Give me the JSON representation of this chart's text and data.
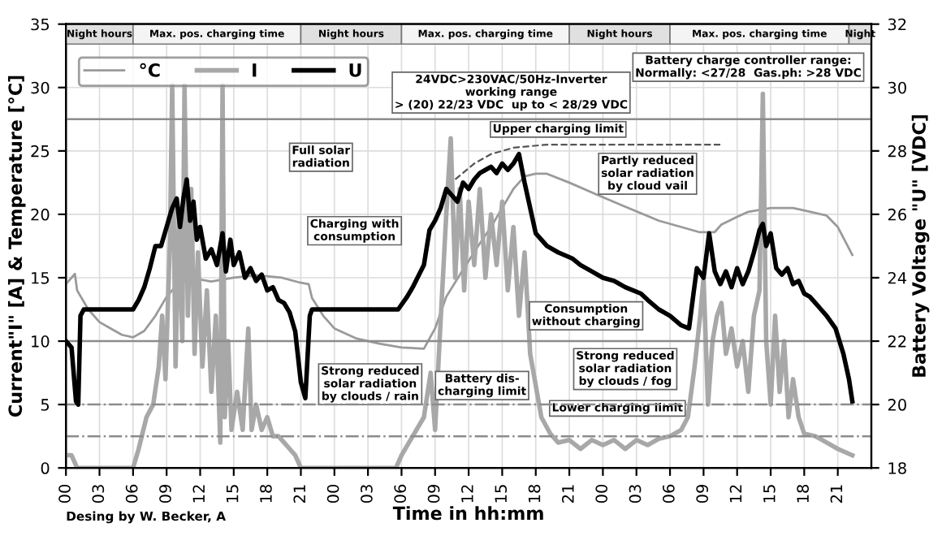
{
  "chart_data": {
    "type": "line",
    "xlabel": "Time in hh:mm",
    "ylabel": "Current\"I\" [A] & Temperature [°C]",
    "y2label": "Battery Voltage \"U\" [VDC]",
    "xlim": [
      0,
      72
    ],
    "xticks": [
      {
        "value": 0,
        "label": "00"
      },
      {
        "value": 3,
        "label": "03"
      },
      {
        "value": 6,
        "label": "06"
      },
      {
        "value": 9,
        "label": "09"
      },
      {
        "value": 12,
        "label": "12"
      },
      {
        "value": 15,
        "label": "15"
      },
      {
        "value": 18,
        "label": "18"
      },
      {
        "value": 21,
        "label": "21"
      },
      {
        "value": 24,
        "label": "00"
      },
      {
        "value": 27,
        "label": "03"
      },
      {
        "value": 30,
        "label": "06"
      },
      {
        "value": 33,
        "label": "09"
      },
      {
        "value": 36,
        "label": "12"
      },
      {
        "value": 39,
        "label": "15"
      },
      {
        "value": 42,
        "label": "18"
      },
      {
        "value": 45,
        "label": "21"
      },
      {
        "value": 48,
        "label": "00"
      },
      {
        "value": 51,
        "label": "03"
      },
      {
        "value": 54,
        "label": "06"
      },
      {
        "value": 57,
        "label": "09"
      },
      {
        "value": 60,
        "label": "12"
      },
      {
        "value": 63,
        "label": "15"
      },
      {
        "value": 66,
        "label": "18"
      },
      {
        "value": 69,
        "label": "21"
      }
    ],
    "ylim": [
      0,
      35
    ],
    "yticks": [
      0,
      5,
      10,
      15,
      20,
      25,
      30,
      35
    ],
    "y2lim": [
      18,
      32
    ],
    "y2ticks": [
      18,
      20,
      22,
      24,
      26,
      28,
      30,
      32
    ],
    "grid": true,
    "legend": "top left",
    "series": [
      {
        "name": "°C",
        "color": "#9a9a9a",
        "x": [
          0,
          0.8,
          1,
          2,
          3,
          4,
          5,
          6,
          7,
          8,
          9,
          10,
          11,
          13,
          15,
          17,
          19.3,
          21,
          21.7,
          22,
          23,
          24,
          26,
          28,
          30,
          32,
          33,
          34,
          35.4,
          37,
          38,
          39,
          40,
          41,
          42,
          43,
          45,
          47.6,
          50,
          53,
          55,
          56.6,
          58,
          58.6,
          60,
          61,
          63,
          65,
          66,
          68,
          69,
          70.3
        ],
        "values": [
          14.5,
          15.3,
          14,
          12.5,
          11.5,
          11,
          10.5,
          10.3,
          10.8,
          12,
          13.5,
          14.5,
          15,
          14.7,
          15,
          15.2,
          15,
          14.6,
          14.5,
          13.4,
          12,
          11,
          10.2,
          9.8,
          9.5,
          9.4,
          11,
          13.5,
          15.5,
          17.7,
          19,
          20.5,
          22,
          23,
          23.2,
          23.2,
          22.5,
          21.5,
          20.6,
          19.5,
          19,
          18.6,
          18.6,
          19.2,
          19.8,
          20.2,
          20.5,
          20.5,
          20.3,
          19.9,
          19,
          16.8
        ]
      },
      {
        "name": "I",
        "color": "#a8a8a8",
        "x": [
          0,
          0.5,
          1,
          6,
          6.5,
          7.2,
          7.8,
          8.3,
          8.6,
          8.9,
          9.3,
          9.5,
          9.8,
          10.1,
          10.4,
          10.6,
          10.9,
          11.2,
          11.5,
          11.8,
          12.2,
          12.6,
          13,
          13.4,
          13.8,
          14,
          14.2,
          14.5,
          14.8,
          15.3,
          15.8,
          16.3,
          16.6,
          17,
          17.5,
          18,
          18.5,
          19,
          19.5,
          20,
          20.5,
          21,
          29.5,
          30,
          31,
          32,
          32.6,
          33,
          33.4,
          34,
          34.4,
          34.8,
          35.2,
          35.6,
          36,
          36.5,
          37,
          37.5,
          38,
          38.5,
          39,
          39.5,
          40,
          40.5,
          41,
          41.5,
          42,
          42.5,
          43.3,
          44,
          45,
          46,
          47,
          48,
          49,
          50,
          51,
          52,
          53,
          54,
          55,
          55.6,
          56.2,
          56.7,
          57,
          57.4,
          57.8,
          58.2,
          58.6,
          59,
          59.5,
          60,
          60.5,
          61,
          61.5,
          62,
          62.3,
          62.6,
          63,
          63.4,
          63.8,
          64.2,
          64.6,
          65,
          65.5,
          66,
          67,
          68,
          69,
          70.3
        ],
        "values": [
          1,
          1,
          0,
          0,
          1.5,
          4,
          5,
          8,
          12,
          7,
          18,
          30.2,
          8,
          20,
          10,
          30.2,
          12,
          22,
          9,
          17,
          8,
          14,
          6,
          12,
          2,
          30.2,
          4,
          10,
          3,
          6,
          3,
          11,
          3,
          5,
          3,
          4,
          2.5,
          2.5,
          2,
          1.5,
          1,
          0,
          0,
          1,
          2.5,
          4,
          7.5,
          3,
          10,
          20,
          26,
          15,
          22,
          14,
          21,
          16,
          22,
          15,
          20,
          16,
          21,
          14,
          19,
          12,
          17,
          9,
          6.5,
          4,
          2.7,
          2,
          2.2,
          1.5,
          2.2,
          1.8,
          2.2,
          1.5,
          2.2,
          1.8,
          2.3,
          2.5,
          3,
          4,
          8,
          12,
          15,
          5,
          10,
          12,
          13,
          9,
          11,
          8,
          10,
          6,
          12,
          14,
          29.5,
          10,
          5,
          12,
          6,
          10,
          4,
          7,
          4,
          2.7,
          2.5,
          2,
          1.5,
          1
        ]
      },
      {
        "name": "U",
        "color": "#000000",
        "axis": "y2",
        "x": [
          0,
          0.5,
          0.9,
          1.1,
          1.3,
          1.6,
          6,
          6.5,
          7,
          7.5,
          8,
          8.5,
          9,
          9.5,
          9.9,
          10.2,
          10.5,
          10.8,
          11.1,
          11.4,
          11.7,
          12,
          12.5,
          13,
          13.5,
          14,
          14.3,
          14.7,
          15,
          15.5,
          16,
          16.5,
          17,
          17.5,
          18,
          18.5,
          19,
          19.5,
          20,
          20.5,
          21,
          21.4,
          21.8,
          22,
          29.7,
          30.5,
          31,
          32,
          32.5,
          33,
          33.5,
          34,
          34.5,
          35,
          35.5,
          36,
          36.5,
          37,
          37.5,
          38,
          38.5,
          39,
          39.5,
          40,
          40.5,
          41,
          41.5,
          42,
          42.5,
          43,
          44,
          45.3,
          46,
          47,
          48,
          49,
          50,
          51.4,
          52,
          53,
          54,
          55,
          55.7,
          56.1,
          56.4,
          57,
          57.5,
          58,
          58.5,
          59,
          59.5,
          60,
          60.5,
          61,
          61.5,
          62,
          62.3,
          62.6,
          63,
          63.5,
          64,
          64.5,
          65,
          65.5,
          66,
          66.5,
          67,
          67.5,
          68,
          68.8,
          69.5,
          70,
          70.3
        ],
        "values": [
          22,
          21.8,
          20.1,
          20,
          22.8,
          23,
          23,
          23.3,
          23.7,
          24.3,
          25,
          25,
          25.6,
          26.2,
          26.5,
          25.6,
          26.5,
          27.1,
          25.8,
          26.4,
          25.2,
          25.6,
          24.6,
          24.9,
          24.4,
          25.4,
          24.2,
          25.2,
          24.4,
          24.8,
          24,
          24.3,
          23.9,
          24.1,
          23.6,
          23.7,
          23.3,
          23.2,
          22.9,
          22.3,
          20.7,
          20.2,
          22.8,
          23,
          23,
          23.4,
          23.7,
          24.4,
          25.5,
          25.8,
          26.2,
          26.8,
          26.6,
          26.4,
          27,
          26.8,
          27.1,
          27.3,
          27.4,
          27.5,
          27.3,
          27.6,
          27.4,
          27.6,
          27.9,
          27,
          26.2,
          25.4,
          25.2,
          25,
          24.8,
          24.6,
          24.4,
          24.2,
          24,
          23.9,
          23.7,
          23.5,
          23.3,
          23,
          22.8,
          22.5,
          22.4,
          23.5,
          24.3,
          24,
          25.4,
          24.2,
          23.8,
          24.2,
          23.7,
          24.3,
          23.8,
          24.2,
          24.8,
          25.5,
          25.7,
          25,
          25.4,
          24.3,
          24.1,
          24.3,
          23.8,
          23.9,
          23.5,
          23.4,
          23.2,
          23,
          22.8,
          22.4,
          21.6,
          20.8,
          20.1
        ]
      },
      {
        "color": "#555555",
        "axis": "y2",
        "line_style": "dashed",
        "x": [
          34.8,
          36.5,
          38,
          40,
          43,
          50,
          58.5
        ],
        "values": [
          27.1,
          27.6,
          27.9,
          28.1,
          28.2,
          28.2,
          28.2
        ]
      }
    ],
    "ref_lines": [
      {
        "axis": "y2",
        "value": 29,
        "color": "#8c8c8c",
        "line_style": "solid"
      },
      {
        "axis": "y2",
        "value": 22,
        "color": "#8c8c8c",
        "line_style": "solid"
      },
      {
        "axis": "y2",
        "value": 20,
        "color": "#8c8c8c",
        "line_style": "dashed"
      },
      {
        "axis": "y2",
        "value": 19,
        "color": "#8c8c8c",
        "line_style": "dashed"
      }
    ],
    "bands": [
      {
        "axis": "x",
        "from": 0,
        "to": 6,
        "label": "Night hours",
        "color": "#e0e0e0"
      },
      {
        "axis": "x",
        "from": 6,
        "to": 21,
        "label": "Max. pos. charging time",
        "color": "#f4f4f4"
      },
      {
        "axis": "x",
        "from": 21,
        "to": 30,
        "label": "Night hours",
        "color": "#e0e0e0"
      },
      {
        "axis": "x",
        "from": 30,
        "to": 45,
        "label": "Max. pos. charging time",
        "color": "#f4f4f4"
      },
      {
        "axis": "x",
        "from": 45,
        "to": 54,
        "label": "Night hours",
        "color": "#e0e0e0"
      },
      {
        "axis": "x",
        "from": 54,
        "to": 70,
        "label": "Max. pos. charging time",
        "color": "#f4f4f4"
      },
      {
        "axis": "x",
        "from": 70,
        "to": 72,
        "label": "Night",
        "color": "#e0e0e0"
      }
    ],
    "annotations": [
      "Full solar\nradiation",
      "24VDC>230VAC/50Hz-Inverter\nworking range\n> (20) 22/23 VDC  up to < 28/29 VDC",
      "Battery charge controller range:\nNormally: <27/28  Gas.ph: >28 VDC",
      "Upper charging limit",
      "Partly reduced\nsolar radiation\nby cloud vail",
      "Charging with\nconsumption",
      "Consumption\nwithout charging",
      "Strong reduced\nsolar radiation\nby clouds / rain",
      "Battery dis-\ncharging limit",
      "Lower charging limit",
      "Strong reduced\nsolar radiation\nby clouds / fog",
      "Desing by W. Becker, A"
    ]
  }
}
